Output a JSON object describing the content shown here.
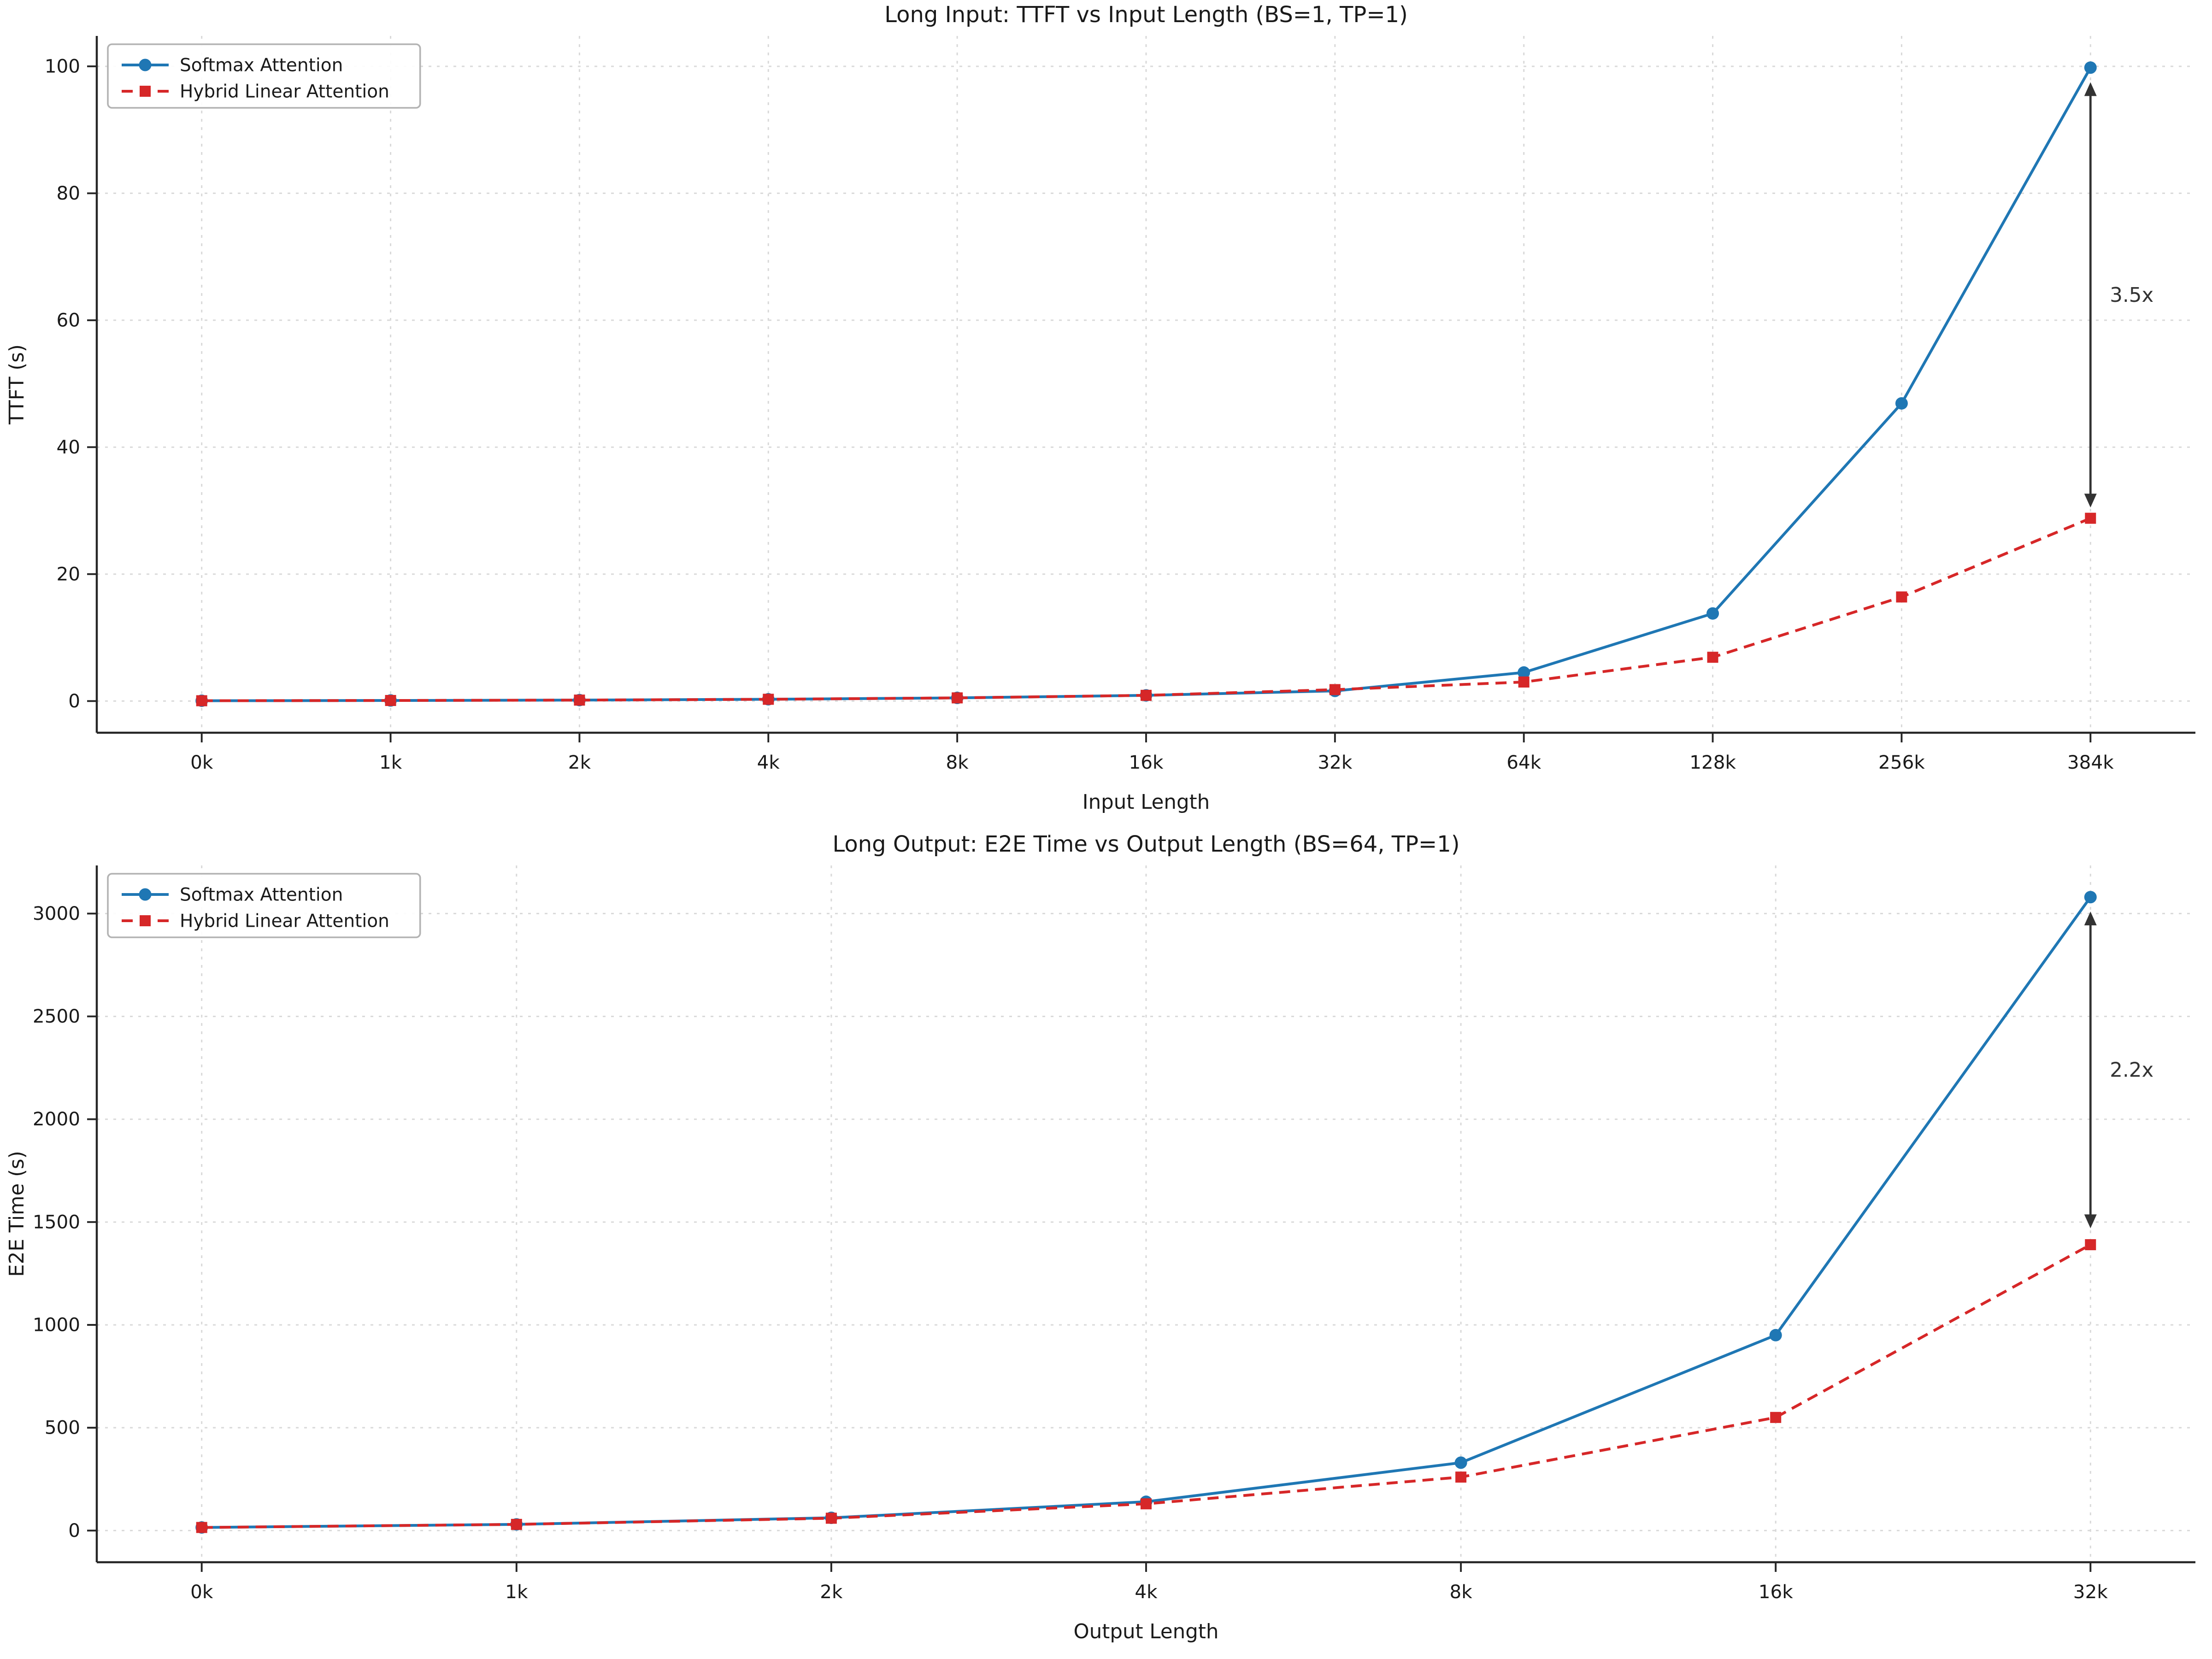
{
  "page": {
    "background": "#ffffff"
  },
  "colors": {
    "softmax": "#1f77b4",
    "hybrid": "#d62728",
    "annotation": "#333333",
    "grid": "#d9d9d9",
    "spine": "#262626",
    "text": "#1a1a1a",
    "legend_border": "#b3b3b3"
  },
  "chart_data": [
    {
      "type": "line",
      "title": "Long Input: TTFT vs Input Length (BS=1, TP=1)",
      "xlabel": "Input Length",
      "ylabel": "TTFT (s)",
      "categories": [
        "0k",
        "1k",
        "2k",
        "4k",
        "8k",
        "16k",
        "32k",
        "64k",
        "128k",
        "256k",
        "384k"
      ],
      "ylim": [
        0,
        99.8
      ],
      "yticks": [
        0,
        20,
        40,
        60,
        80,
        100
      ],
      "grid": true,
      "legend_position": "upper-left",
      "series": [
        {
          "name": "Softmax Attention",
          "color": "#1f77b4",
          "style": "solid",
          "marker": "circle",
          "values": [
            0.05,
            0.09,
            0.15,
            0.28,
            0.5,
            0.9,
            1.6,
            4.5,
            13.8,
            46.9,
            99.8
          ]
        },
        {
          "name": "Hybrid Linear Attention",
          "color": "#d62728",
          "style": "dashed",
          "marker": "square",
          "values": [
            0.05,
            0.09,
            0.15,
            0.28,
            0.5,
            0.9,
            1.8,
            3.0,
            6.9,
            16.4,
            28.8
          ]
        }
      ],
      "annotation": {
        "label": "3.5x",
        "x_index": 10,
        "y_from": 97.5,
        "y_to": 30.5
      }
    },
    {
      "type": "line",
      "title": "Long Output: E2E Time vs Output Length (BS=64, TP=1)",
      "xlabel": "Output Length",
      "ylabel": "E2E Time (s)",
      "categories": [
        "0k",
        "1k",
        "2k",
        "4k",
        "8k",
        "16k",
        "32k"
      ],
      "ylim": [
        0,
        3080
      ],
      "yticks": [
        0,
        500,
        1000,
        1500,
        2000,
        2500,
        3000
      ],
      "grid": true,
      "legend_position": "upper-left",
      "series": [
        {
          "name": "Softmax Attention",
          "color": "#1f77b4",
          "style": "solid",
          "marker": "circle",
          "values": [
            15,
            30,
            62,
            140,
            330,
            950,
            3080
          ]
        },
        {
          "name": "Hybrid Linear Attention",
          "color": "#d62728",
          "style": "dashed",
          "marker": "square",
          "values": [
            15,
            30,
            60,
            130,
            260,
            550,
            1390
          ]
        }
      ],
      "annotation": {
        "label": "2.2x",
        "x_index": 6,
        "y_from": 3010,
        "y_to": 1470
      }
    }
  ]
}
